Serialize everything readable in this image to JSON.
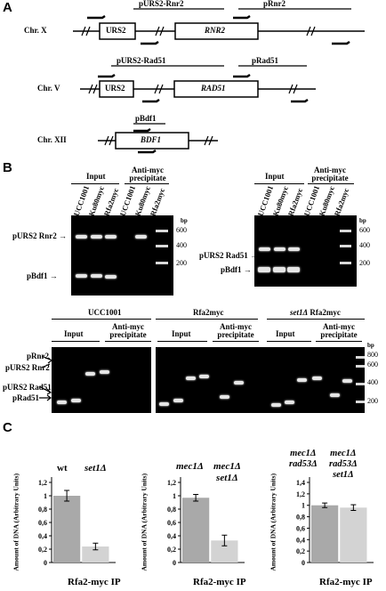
{
  "panels": {
    "a": "A",
    "b": "B",
    "c": "C"
  },
  "panelA": {
    "chrX": {
      "chr": "Chr.  X",
      "left_fragment": "pURS2-Rnr2",
      "right_fragment": "pRnr2",
      "box1": "URS2",
      "box2": "RNR2"
    },
    "chrV": {
      "chr": "Chr.  V",
      "left_fragment": "pURS2-Rad51",
      "right_fragment": "pRad51",
      "box1": "URS2",
      "box2": "RAD51"
    },
    "chrXII": {
      "chr": "Chr.  XII",
      "fragment": "pBdf1",
      "box": "BDF1"
    }
  },
  "panelB": {
    "gel1": {
      "input": "Input",
      "ip": "Anti-myc precipitate",
      "lanes": [
        "UCC1001",
        "Ku80myc",
        "Rfa2myc",
        "UCC1001",
        "Ku80myc",
        "Rfa2myc"
      ],
      "bp": "bp",
      "marks": [
        "600",
        "400",
        "200"
      ],
      "band_labels": [
        "pURS2 Rnr2",
        "pBdf1"
      ]
    },
    "gel2": {
      "input": "Input",
      "ip": "Anti-myc precipitate",
      "lanes": [
        "UCC1001",
        "Ku80myc",
        "Rfa2myc",
        "UCC1001",
        "Ku80myc",
        "Rfa2myc"
      ],
      "bp": "bp",
      "marks": [
        "600",
        "400",
        "200"
      ],
      "band_labels": [
        "pURS2 Rad51",
        "pBdf1"
      ]
    },
    "gel3": {
      "strains": [
        "UCC1001",
        "Rfa2myc",
        "set1Δ Rfa2myc"
      ],
      "input": "Input",
      "ip": "Anti-myc precipitate",
      "band_labels": [
        "pRnr2",
        "pURS2 Rnr2",
        "pURS2 Rad51",
        "pRad51"
      ],
      "bp": "bp",
      "marks": [
        "800",
        "600",
        "400",
        "200"
      ]
    }
  },
  "panelC": {
    "ylabel": "Amount of DNA (Arbitrary Units)",
    "xlabel": "Rfa2-myc IP",
    "charts": [
      {
        "labels": [
          "wt",
          "set1Δ"
        ],
        "ticks": [
          "1,2",
          "1",
          "0,8",
          "0,6",
          "0,4",
          "0,2",
          "0"
        ]
      },
      {
        "labels": [
          "mec1Δ",
          "mec1Δ set1Δ"
        ],
        "ticks": [
          "1,2",
          "1",
          "0,8",
          "0,6",
          "0,4",
          "0,2",
          "0"
        ]
      },
      {
        "labels": [
          "mec1Δ rad53Δ",
          "mec1Δ rad53Δ set1Δ"
        ],
        "ticks": [
          "1,4",
          "1,2",
          "1",
          "0,8",
          "0,6",
          "0,4",
          "0,2",
          "0"
        ]
      }
    ]
  },
  "chart_data": [
    {
      "type": "bar",
      "categories": [
        "wt",
        "set1Δ"
      ],
      "values": [
        1.0,
        0.24
      ],
      "errors": [
        0.08,
        0.05
      ],
      "ylim": [
        0,
        1.2
      ],
      "ylabel": "Amount of DNA (Arbitrary Units)",
      "xlabel": "Rfa2-myc IP",
      "colors": [
        "#a9a9a9",
        "#d3d3d3"
      ]
    },
    {
      "type": "bar",
      "categories": [
        "mec1Δ",
        "mec1Δ set1Δ"
      ],
      "values": [
        0.97,
        0.33
      ],
      "errors": [
        0.05,
        0.08
      ],
      "ylim": [
        0,
        1.2
      ],
      "ylabel": "Amount of DNA (Arbitrary Units)",
      "xlabel": "Rfa2-myc IP",
      "colors": [
        "#a9a9a9",
        "#d3d3d3"
      ]
    },
    {
      "type": "bar",
      "categories": [
        "mec1Δ rad53Δ",
        "mec1Δ rad53Δ set1Δ"
      ],
      "values": [
        1.0,
        0.96
      ],
      "errors": [
        0.04,
        0.05
      ],
      "ylim": [
        0,
        1.4
      ],
      "ylabel": "Amount of DNA (Arbitrary Units)",
      "xlabel": "Rfa2-myc IP",
      "colors": [
        "#a9a9a9",
        "#d3d3d3"
      ]
    }
  ]
}
